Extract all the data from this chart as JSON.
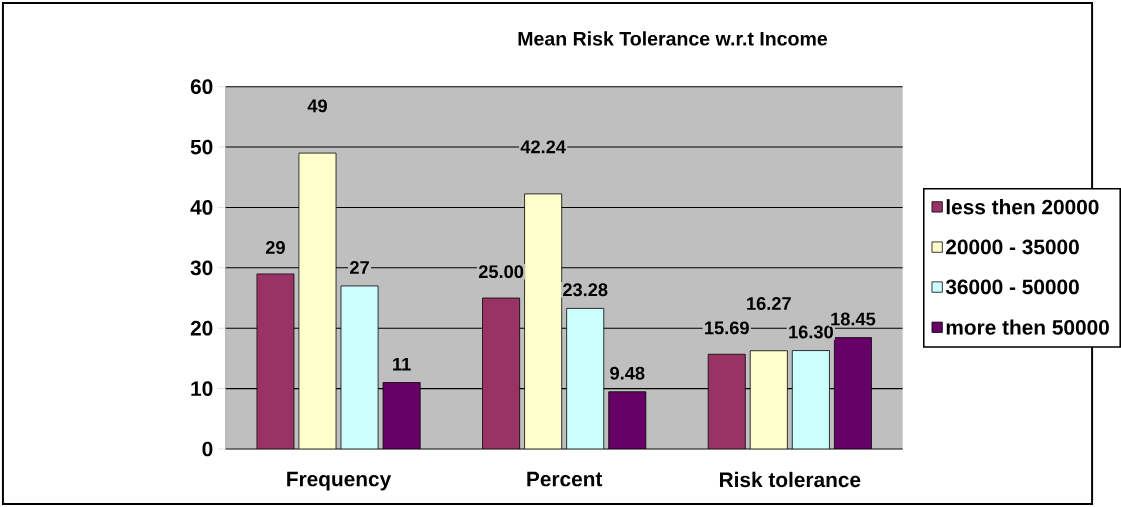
{
  "chart_data": {
    "type": "bar",
    "title": "Mean Risk Tolerance w.r.t Income",
    "categories": [
      "Frequency",
      "Percent",
      "Risk tolerance"
    ],
    "series": [
      {
        "name": "less then 20000",
        "color": "#993366",
        "values": [
          29,
          25.0,
          15.69
        ],
        "value_labels": [
          "29",
          "25.00",
          "15.69"
        ]
      },
      {
        "name": "20000 - 35000",
        "color": "#ffffcc",
        "values": [
          49,
          42.24,
          16.27
        ],
        "value_labels": [
          "49",
          "42.24",
          "16.27"
        ]
      },
      {
        "name": "36000 - 50000",
        "color": "#ccffff",
        "values": [
          27,
          23.28,
          16.3
        ],
        "value_labels": [
          "27",
          "23.28",
          "16.30"
        ]
      },
      {
        "name": "more then 50000",
        "color": "#660066",
        "values": [
          11,
          9.48,
          18.45
        ],
        "value_labels": [
          "11",
          "9.48",
          "18.45"
        ]
      }
    ],
    "ylim": [
      0,
      60
    ],
    "yticks": [
      0,
      10,
      20,
      30,
      40,
      50,
      60
    ],
    "grid": "y",
    "legend": "right"
  }
}
